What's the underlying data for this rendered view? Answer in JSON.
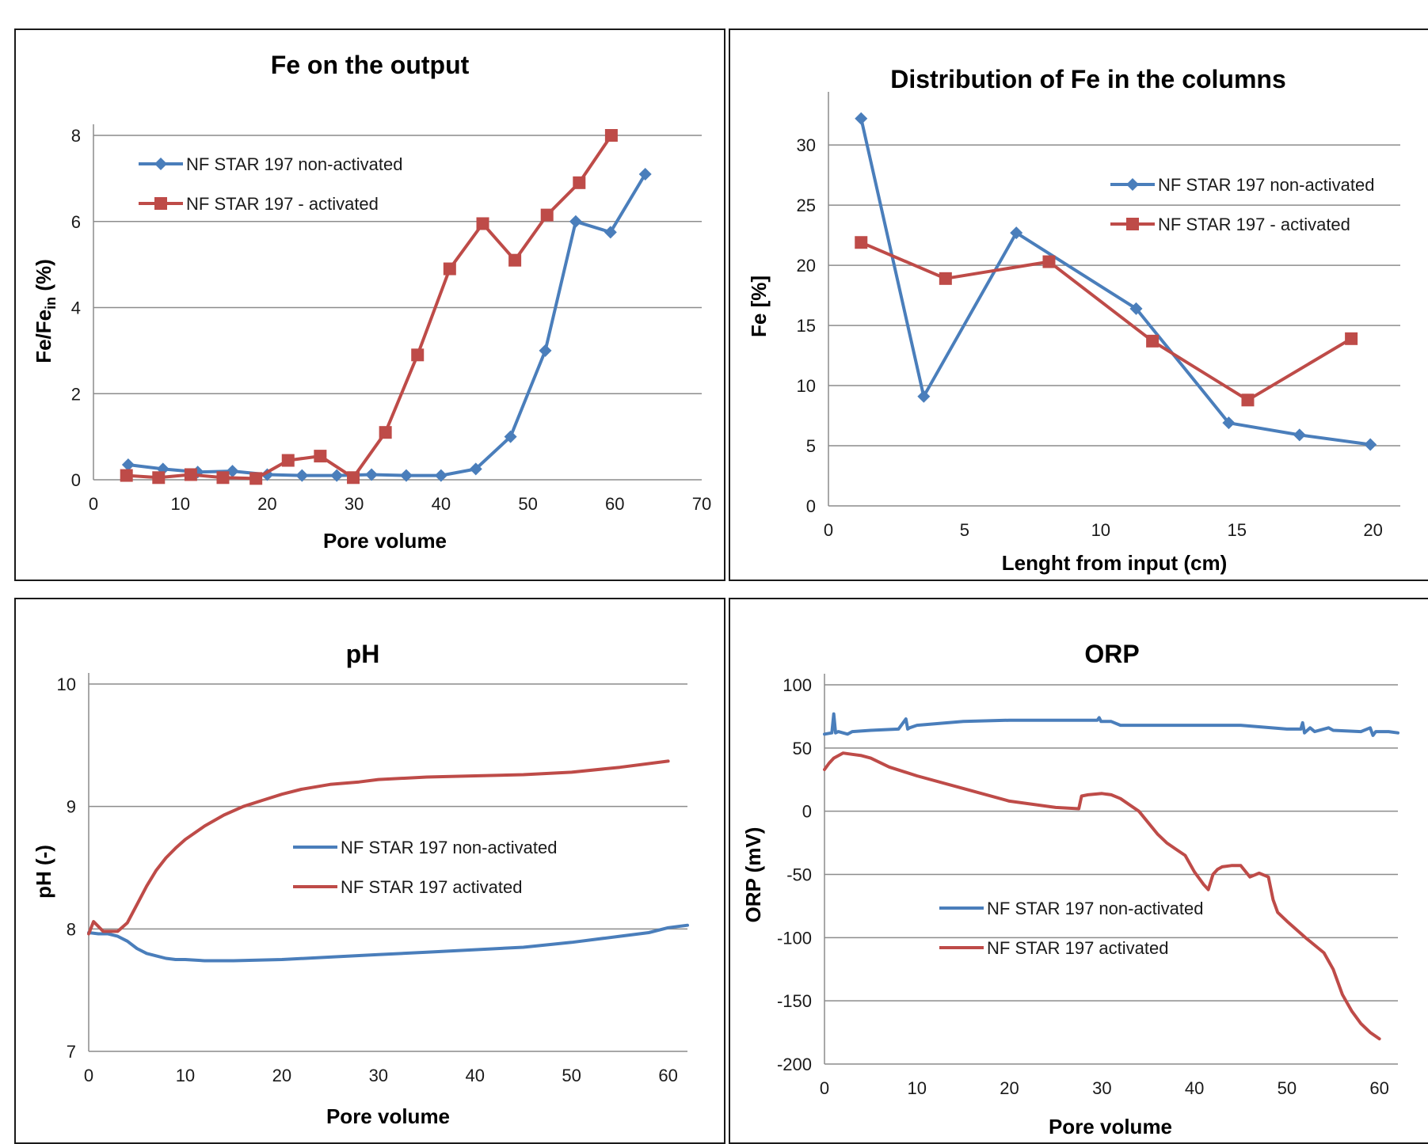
{
  "colors": {
    "blue": "#4a7ebb",
    "red": "#be4b48"
  },
  "chart_data": [
    {
      "id": "fe-output",
      "type": "line",
      "title": "Fe on the output",
      "xlabel": "Pore volume",
      "ylabel": "Fe/Fe_in (%)",
      "ylabel_main": "Fe/Fe",
      "ylabel_sub": "in",
      "ylabel_tail": " (%)",
      "xlim": [
        0,
        70
      ],
      "ylim": [
        0,
        8
      ],
      "xticks": [
        0,
        10,
        20,
        30,
        40,
        50,
        60,
        70
      ],
      "yticks": [
        0,
        2,
        4,
        6,
        8
      ],
      "grid": true,
      "legend_position": "top-left",
      "series": [
        {
          "name": "NF STAR 197 non-activated",
          "color": "#4a7ebb",
          "marker": "diamond",
          "x": [
            4,
            8,
            12,
            16,
            20,
            24,
            28,
            32,
            36,
            40,
            44,
            48,
            52,
            55.5,
            59.5,
            63.5
          ],
          "y": [
            0.35,
            0.25,
            0.18,
            0.2,
            0.12,
            0.1,
            0.1,
            0.12,
            0.1,
            0.1,
            0.25,
            1.0,
            3.0,
            6.0,
            5.75,
            7.1
          ]
        },
        {
          "name": "NF STAR 197 - activated",
          "color": "#be4b48",
          "marker": "square",
          "x": [
            3.8,
            7.5,
            11.2,
            14.9,
            18.7,
            22.4,
            26.1,
            29.9,
            33.6,
            37.3,
            41.0,
            44.8,
            48.5,
            52.2,
            55.9,
            59.6
          ],
          "y": [
            0.1,
            0.05,
            0.12,
            0.05,
            0.03,
            0.45,
            0.55,
            0.05,
            1.1,
            2.9,
            4.9,
            5.95,
            5.1,
            6.15,
            6.9,
            8.0
          ]
        }
      ]
    },
    {
      "id": "fe-distribution",
      "type": "line",
      "title": "Distribution of Fe in the columns",
      "xlabel": "Lenght from input (cm)",
      "ylabel": "Fe [%]",
      "xlim": [
        0,
        21
      ],
      "ylim": [
        0,
        33.5
      ],
      "xticks": [
        0,
        5,
        10,
        15,
        20
      ],
      "yticks": [
        0,
        5,
        10,
        15,
        20,
        25,
        30
      ],
      "grid": true,
      "legend_position": "top-right",
      "series": [
        {
          "name": "NF STAR 197 non-activated",
          "color": "#4a7ebb",
          "marker": "diamond",
          "x": [
            1.2,
            3.5,
            6.9,
            11.3,
            14.7,
            17.3,
            19.9
          ],
          "y": [
            32.2,
            9.1,
            22.7,
            16.4,
            6.9,
            5.9,
            5.1
          ]
        },
        {
          "name": "NF STAR 197 - activated",
          "color": "#be4b48",
          "marker": "square",
          "x": [
            1.2,
            4.3,
            8.1,
            11.9,
            15.4,
            19.2
          ],
          "y": [
            21.9,
            18.9,
            20.3,
            13.7,
            8.8,
            13.9
          ]
        }
      ]
    },
    {
      "id": "ph",
      "type": "line",
      "title": "pH",
      "xlabel": "Pore volume",
      "ylabel": "pH (-)",
      "xlim": [
        0,
        62
      ],
      "ylim": [
        7,
        10
      ],
      "xticks": [
        0,
        10,
        20,
        30,
        40,
        50,
        60
      ],
      "yticks": [
        7,
        8,
        9,
        10
      ],
      "grid": true,
      "legend_position": "center",
      "series": [
        {
          "name": "NF STAR 197 non-activated",
          "color": "#4a7ebb",
          "x": [
            0,
            1,
            2,
            3,
            4,
            5,
            6,
            7,
            8,
            9,
            10,
            12,
            15,
            20,
            25,
            30,
            35,
            40,
            45,
            50,
            55,
            58,
            60,
            62
          ],
          "y": [
            7.97,
            7.96,
            7.96,
            7.94,
            7.9,
            7.84,
            7.8,
            7.78,
            7.76,
            7.75,
            7.75,
            7.74,
            7.74,
            7.75,
            7.77,
            7.79,
            7.81,
            7.83,
            7.85,
            7.89,
            7.94,
            7.97,
            8.01,
            8.03
          ]
        },
        {
          "name": "NF STAR 197 activated",
          "color": "#be4b48",
          "x": [
            0,
            0.5,
            1,
            1.5,
            2,
            3,
            4,
            5,
            6,
            7,
            8,
            9,
            10,
            12,
            14,
            16,
            18,
            20,
            22,
            25,
            28,
            30,
            35,
            40,
            45,
            50,
            55,
            60
          ],
          "y": [
            7.96,
            8.06,
            8.02,
            7.98,
            7.98,
            7.98,
            8.05,
            8.2,
            8.35,
            8.48,
            8.58,
            8.66,
            8.73,
            8.84,
            8.93,
            9.0,
            9.05,
            9.1,
            9.14,
            9.18,
            9.2,
            9.22,
            9.24,
            9.25,
            9.26,
            9.28,
            9.32,
            9.37
          ]
        }
      ]
    },
    {
      "id": "orp",
      "type": "line",
      "title": "ORP",
      "xlabel": "Pore volume",
      "ylabel": "ORP (mV)",
      "xlim": [
        0,
        62
      ],
      "ylim": [
        -200,
        100
      ],
      "xticks": [
        0,
        10,
        20,
        30,
        40,
        50,
        60
      ],
      "yticks": [
        -200,
        -150,
        -100,
        -50,
        0,
        50,
        100
      ],
      "grid": true,
      "legend_position": "center",
      "series": [
        {
          "name": "NF STAR 197 non-activated",
          "color": "#4a7ebb",
          "x": [
            0,
            0.8,
            1.0,
            1.2,
            1.5,
            2.5,
            3,
            5,
            8,
            8.8,
            9.0,
            9.2,
            10,
            15,
            20,
            25,
            29.5,
            29.7,
            29.9,
            31,
            32,
            35,
            40,
            43,
            45,
            50,
            51.5,
            51.7,
            51.9,
            52.5,
            53,
            54.5,
            55,
            58,
            59,
            59.3,
            59.6,
            61,
            62
          ],
          "y": [
            61,
            62,
            77,
            62,
            63,
            61,
            63,
            64,
            65,
            73,
            65,
            66,
            68,
            71,
            72,
            72,
            72,
            74,
            71,
            71,
            68,
            68,
            68,
            68,
            68,
            65,
            65,
            70,
            62,
            66,
            63,
            66,
            64,
            63,
            66,
            60,
            63,
            63,
            62
          ]
        },
        {
          "name": "NF STAR 197 activated",
          "color": "#be4b48",
          "x": [
            0,
            0.5,
            1,
            2,
            3,
            4,
            5,
            7,
            10,
            15,
            20,
            25,
            27.5,
            27.8,
            28.5,
            30,
            31,
            32,
            34,
            36,
            37,
            38,
            39,
            40,
            41,
            41.5,
            42,
            42.5,
            43,
            44,
            45,
            46,
            47,
            48,
            48.5,
            49,
            50,
            52,
            54,
            55,
            56,
            57,
            58,
            59,
            60
          ],
          "y": [
            33,
            38,
            42,
            46,
            45,
            44,
            42,
            35,
            28,
            18,
            8,
            3,
            2,
            12,
            13,
            14,
            13,
            10,
            0,
            -18,
            -25,
            -30,
            -35,
            -48,
            -58,
            -62,
            -50,
            -46,
            -44,
            -43,
            -43,
            -52,
            -49,
            -52,
            -70,
            -80,
            -87,
            -100,
            -112,
            -125,
            -145,
            -158,
            -168,
            -175,
            -180
          ]
        }
      ]
    }
  ]
}
